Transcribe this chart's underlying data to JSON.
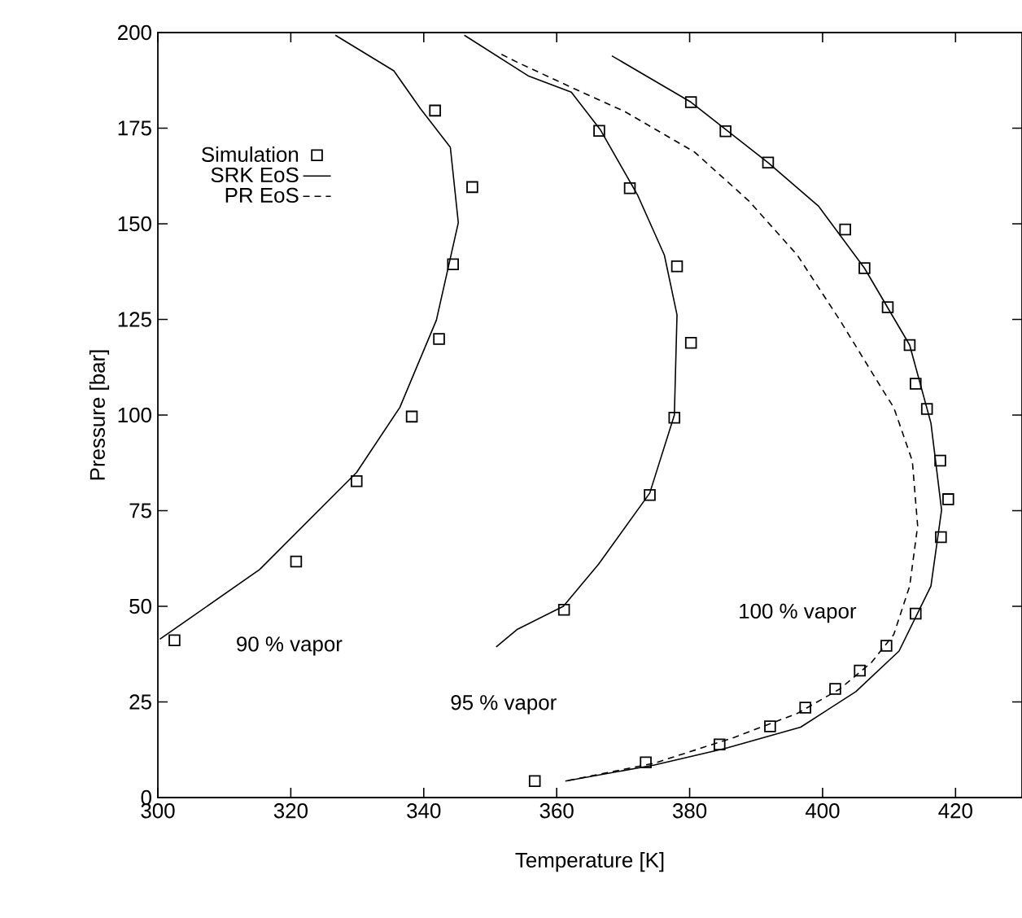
{
  "chart_data": {
    "type": "scatter",
    "xlabel": "Temperature [K]",
    "ylabel": "Pressure [bar]",
    "xlim": [
      300,
      430
    ],
    "ylim": [
      0,
      200
    ],
    "xticks": [
      300,
      320,
      340,
      360,
      380,
      400,
      420
    ],
    "yticks": [
      0,
      25,
      50,
      75,
      100,
      125,
      150,
      175,
      200
    ],
    "grid": false,
    "legend": "top left",
    "series": [
      {
        "name": "Simulation",
        "marker": "square",
        "color": "#000000",
        "x": [
          302.5,
          320.8,
          329.9,
          338.2,
          342.3,
          344.4,
          347.3,
          341.7,
          361.1,
          374.0,
          377.7,
          380.2,
          378.1,
          371.0,
          366.4,
          380.2,
          385.4,
          391.8,
          403.4,
          406.3,
          409.8,
          413.1,
          414.0,
          415.7,
          417.7,
          418.9,
          417.8,
          414.0,
          409.6,
          405.6,
          401.9,
          397.4,
          392.1,
          384.5,
          373.4,
          356.7
        ],
        "values": [
          41.1,
          61.7,
          82.7,
          99.6,
          119.9,
          139.4,
          159.6,
          179.6,
          49.1,
          79.1,
          99.3,
          118.9,
          138.9,
          159.3,
          174.3,
          181.8,
          174.2,
          166.0,
          148.5,
          138.4,
          128.2,
          118.3,
          108.2,
          101.6,
          88.1,
          78.0,
          68.1,
          48.1,
          39.7,
          33.2,
          28.4,
          23.5,
          18.6,
          13.9,
          9.2,
          4.3
        ]
      },
      {
        "name": "SRK EoS",
        "type": "line",
        "marker": "none",
        "line_style": "solid",
        "color": "#000000",
        "x": [
          300.3,
          315.3,
          329.9,
          336.4,
          341.9,
          345.2,
          344.0,
          339.5,
          335.5,
          326.7,
          null,
          350.9,
          354.1,
          361.0,
          366.3,
          374.0,
          377.7,
          378.1,
          376.2,
          372.2,
          366.6,
          362.2,
          355.8,
          346.1,
          null,
          368.3,
          380.2,
          391.8,
          399.4,
          406.3,
          413.1,
          416.3,
          417.9,
          416.3,
          411.5,
          405.0,
          396.7,
          385.3,
          374.7,
          361.3
        ],
        "values": [
          41.4,
          59.6,
          85.0,
          102.0,
          124.8,
          150.3,
          170.0,
          180.1,
          190.0,
          199.3,
          null,
          39.4,
          44.0,
          50.0,
          61.0,
          79.6,
          100.0,
          126.2,
          141.8,
          157.4,
          174.5,
          184.4,
          188.6,
          199.3,
          null,
          193.9,
          181.8,
          166.0,
          154.6,
          138.4,
          118.3,
          97.9,
          75.2,
          55.3,
          38.3,
          27.7,
          18.4,
          12.8,
          8.5,
          4.3
        ]
      },
      {
        "name": "PR EoS",
        "type": "line",
        "marker": "none",
        "line_style": "dashed",
        "color": "#000000",
        "x": [
          351.7,
          354.1,
          363.8,
          370.2,
          380.7,
          388.9,
          396.2,
          402.6,
          409.1,
          410.7,
          413.5,
          414.3,
          413.1,
          410.7,
          407.4,
          402.6,
          396.2,
          386.5,
          374.7,
          361.3
        ],
        "values": [
          194.3,
          192.2,
          184.4,
          179.4,
          168.8,
          156.0,
          141.8,
          124.8,
          106.4,
          102.0,
          88.0,
          71.0,
          55.3,
          42.6,
          35.4,
          28.4,
          22.0,
          15.6,
          9.0,
          4.3
        ]
      }
    ],
    "annotations": [
      "90 % vapor",
      "95 % vapor",
      "100 % vapor"
    ]
  }
}
